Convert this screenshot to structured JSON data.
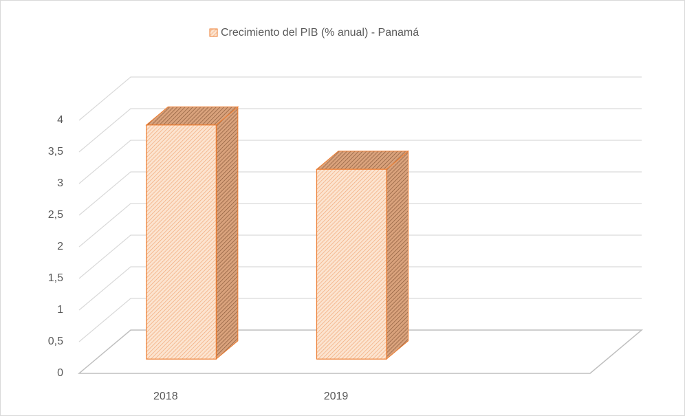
{
  "chart_data": {
    "type": "bar3d",
    "legend_title": "Crecimiento del PIB (% anual) - Panamá",
    "categories": [
      "2018",
      "2019"
    ],
    "series": [
      {
        "name": "Crecimiento del PIB (% anual) - Panamá",
        "color": "#ed7d31",
        "values": [
          3.7,
          3.0
        ]
      }
    ],
    "ylim": [
      0,
      4
    ],
    "yticks": [
      0,
      {
        "value": 0.5,
        "label": "0,5"
      },
      1,
      {
        "value": 1.5,
        "label": "1,5"
      },
      2,
      {
        "value": 2.5,
        "label": "2,5"
      },
      3,
      {
        "value": 3.5,
        "label": "3,5"
      },
      4
    ],
    "grid": true
  }
}
